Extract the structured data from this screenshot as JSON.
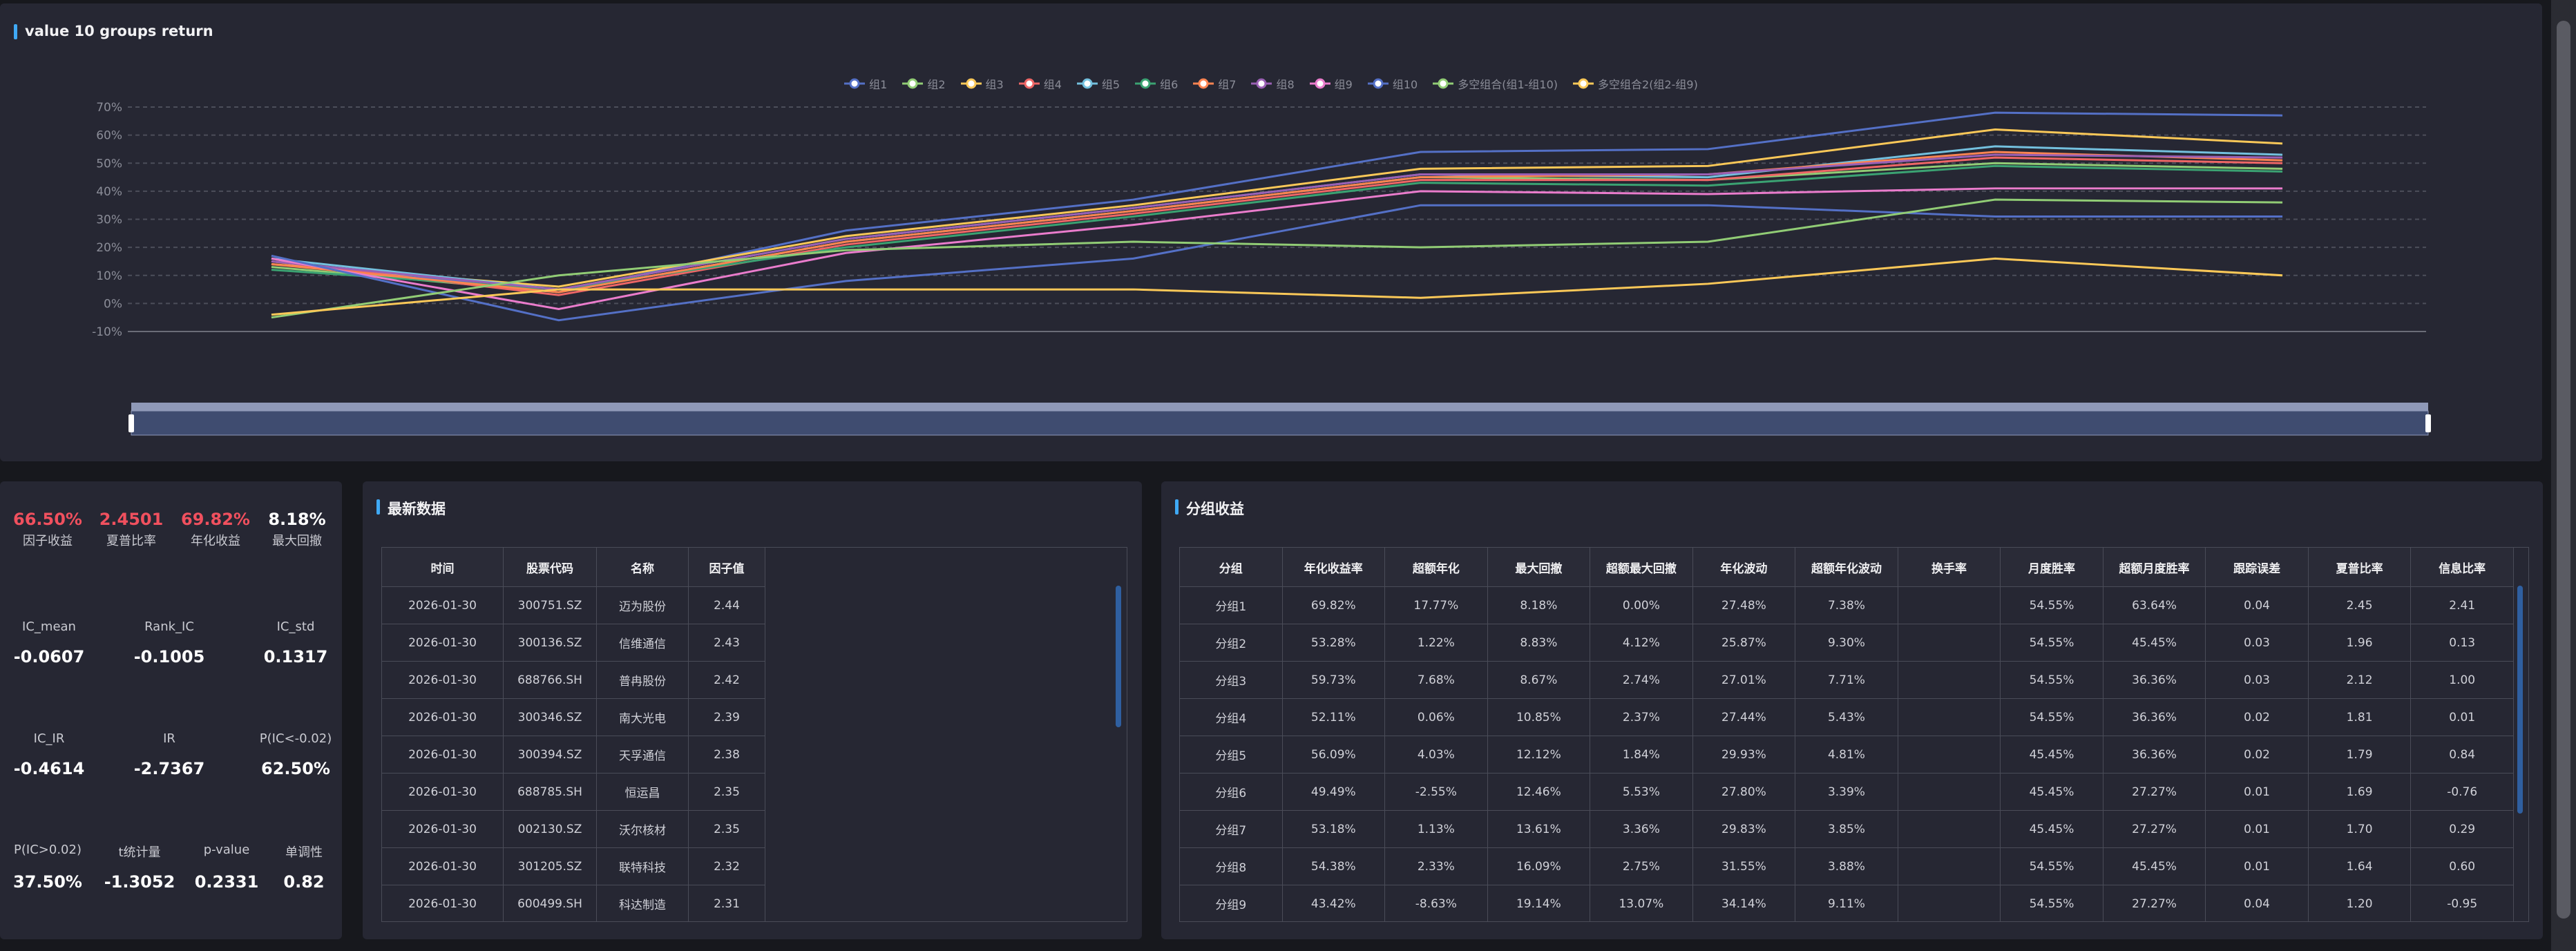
{
  "chart_data": {
    "type": "line",
    "title": "value 10 groups return",
    "categories": [
      null,
      null,
      null,
      null,
      null,
      null,
      null,
      null
    ],
    "ylim": [
      -10,
      70
    ],
    "yticks": [
      {
        "value": -10,
        "label": "-10%"
      },
      {
        "value": 0,
        "label": "0%"
      },
      {
        "value": 10,
        "label": "10%"
      },
      {
        "value": 20,
        "label": "20%"
      },
      {
        "value": 30,
        "label": "30%"
      },
      {
        "value": 40,
        "label": "40%"
      },
      {
        "value": 50,
        "label": "50%"
      },
      {
        "value": 60,
        "label": "60%"
      },
      {
        "value": 70,
        "label": "70%"
      }
    ],
    "grid": true,
    "series": [
      {
        "name": "组1",
        "color": "#5470c6",
        "values": [
          15,
          4,
          26,
          37,
          54,
          55,
          68,
          67
        ]
      },
      {
        "name": "组2",
        "color": "#91cc75",
        "values": [
          13,
          4,
          22,
          33,
          45,
          44,
          50,
          48
        ]
      },
      {
        "name": "组3",
        "color": "#fac858",
        "values": [
          14,
          6,
          24,
          35,
          48,
          49,
          62,
          57
        ]
      },
      {
        "name": "组4",
        "color": "#ee6666",
        "values": [
          15,
          3,
          21,
          32,
          44,
          44,
          52,
          50
        ]
      },
      {
        "name": "组5",
        "color": "#73c0de",
        "values": [
          16,
          5,
          23,
          34,
          46,
          45,
          56,
          53
        ]
      },
      {
        "name": "组6",
        "color": "#3ba272",
        "values": [
          12,
          5,
          20,
          31,
          43,
          42,
          49,
          47
        ]
      },
      {
        "name": "组7",
        "color": "#fc8452",
        "values": [
          14,
          4,
          22,
          33,
          45,
          46,
          54,
          51
        ]
      },
      {
        "name": "组8",
        "color": "#9a60b4",
        "values": [
          15,
          5,
          23,
          34,
          46,
          46,
          53,
          52
        ]
      },
      {
        "name": "组9",
        "color": "#ea7ccc",
        "values": [
          16,
          -2,
          18,
          28,
          40,
          39,
          41,
          41
        ]
      },
      {
        "name": "组10",
        "color": "#5470c6",
        "values": [
          17,
          -6,
          8,
          16,
          35,
          35,
          31,
          31
        ]
      },
      {
        "name": "多空组合(组1-组10)",
        "color": "#91cc75",
        "values": [
          -5,
          10,
          19,
          22,
          20,
          22,
          37,
          36
        ]
      },
      {
        "name": "多空组合2(组2-组9)",
        "color": "#fac858",
        "values": [
          -4,
          5,
          5,
          5,
          2,
          7,
          16,
          10
        ]
      }
    ]
  },
  "metrics": [
    [
      {
        "value": "66.50%",
        "label": "因子收益"
      },
      {
        "value": "2.4501",
        "label": "夏普比率"
      },
      {
        "value": "69.82%",
        "label": "年化收益"
      },
      {
        "value": "8.18%",
        "label": "最大回撤"
      }
    ],
    [
      {
        "label": "IC_mean",
        "value": "-0.0607"
      },
      {
        "label": "Rank_IC",
        "value": "-0.1005"
      },
      {
        "label": "IC_std",
        "value": "0.1317"
      }
    ],
    [
      {
        "label": "IC_IR",
        "value": "-0.4614"
      },
      {
        "label": "IR",
        "value": "-2.7367"
      },
      {
        "label": "P(IC<-0.02)",
        "value": "62.50%"
      }
    ],
    [
      {
        "label": "P(IC>0.02)",
        "value": "37.50%"
      },
      {
        "label": "t统计量",
        "value": "-1.3052"
      },
      {
        "label": "p-value",
        "value": "0.2331"
      },
      {
        "label": "单调性",
        "value": "0.82"
      }
    ]
  ],
  "latest": {
    "title": "最新数据",
    "columns": [
      "时间",
      "股票代码",
      "名称",
      "因子值"
    ],
    "rows": [
      [
        "2026-01-30",
        "300751.SZ",
        "迈为股份",
        "2.44"
      ],
      [
        "2026-01-30",
        "300136.SZ",
        "信维通信",
        "2.43"
      ],
      [
        "2026-01-30",
        "688766.SH",
        "普冉股份",
        "2.42"
      ],
      [
        "2026-01-30",
        "300346.SZ",
        "南大光电",
        "2.39"
      ],
      [
        "2026-01-30",
        "300394.SZ",
        "天孚通信",
        "2.38"
      ],
      [
        "2026-01-30",
        "688785.SH",
        "恒运昌",
        "2.35"
      ],
      [
        "2026-01-30",
        "002130.SZ",
        "沃尔核材",
        "2.35"
      ],
      [
        "2026-01-30",
        "301205.SZ",
        "联特科技",
        "2.32"
      ],
      [
        "2026-01-30",
        "600499.SH",
        "科达制造",
        "2.31"
      ]
    ]
  },
  "groups": {
    "title": "分组收益",
    "columns": [
      "分组",
      "年化收益率",
      "超额年化",
      "最大回撤",
      "超额最大回撤",
      "年化波动",
      "超额年化波动",
      "换手率",
      "月度胜率",
      "超额月度胜率",
      "跟踪误差",
      "夏普比率",
      "信息比率"
    ],
    "rows": [
      [
        "分组1",
        "69.82%",
        "17.77%",
        "8.18%",
        "0.00%",
        "27.48%",
        "7.38%",
        null,
        "54.55%",
        "63.64%",
        "0.04",
        "2.45",
        "2.41"
      ],
      [
        "分组2",
        "53.28%",
        "1.22%",
        "8.83%",
        "4.12%",
        "25.87%",
        "9.30%",
        null,
        "54.55%",
        "45.45%",
        "0.03",
        "1.96",
        "0.13"
      ],
      [
        "分组3",
        "59.73%",
        "7.68%",
        "8.67%",
        "2.74%",
        "27.01%",
        "7.71%",
        null,
        "54.55%",
        "36.36%",
        "0.03",
        "2.12",
        "1.00"
      ],
      [
        "分组4",
        "52.11%",
        "0.06%",
        "10.85%",
        "2.37%",
        "27.44%",
        "5.43%",
        null,
        "54.55%",
        "36.36%",
        "0.02",
        "1.81",
        "0.01"
      ],
      [
        "分组5",
        "56.09%",
        "4.03%",
        "12.12%",
        "1.84%",
        "29.93%",
        "4.81%",
        null,
        "45.45%",
        "36.36%",
        "0.02",
        "1.79",
        "0.84"
      ],
      [
        "分组6",
        "49.49%",
        "-2.55%",
        "12.46%",
        "5.53%",
        "27.80%",
        "3.39%",
        null,
        "45.45%",
        "27.27%",
        "0.01",
        "1.69",
        "-0.76"
      ],
      [
        "分组7",
        "53.18%",
        "1.13%",
        "13.61%",
        "3.36%",
        "29.83%",
        "3.85%",
        null,
        "45.45%",
        "27.27%",
        "0.01",
        "1.70",
        "0.29"
      ],
      [
        "分组8",
        "54.38%",
        "2.33%",
        "16.09%",
        "2.75%",
        "31.55%",
        "3.88%",
        null,
        "54.55%",
        "45.45%",
        "0.01",
        "1.64",
        "0.60"
      ],
      [
        "分组9",
        "43.42%",
        "-8.63%",
        "19.14%",
        "13.07%",
        "34.14%",
        "9.11%",
        null,
        "54.55%",
        "27.27%",
        "0.04",
        "1.20",
        "-0.95"
      ]
    ]
  }
}
